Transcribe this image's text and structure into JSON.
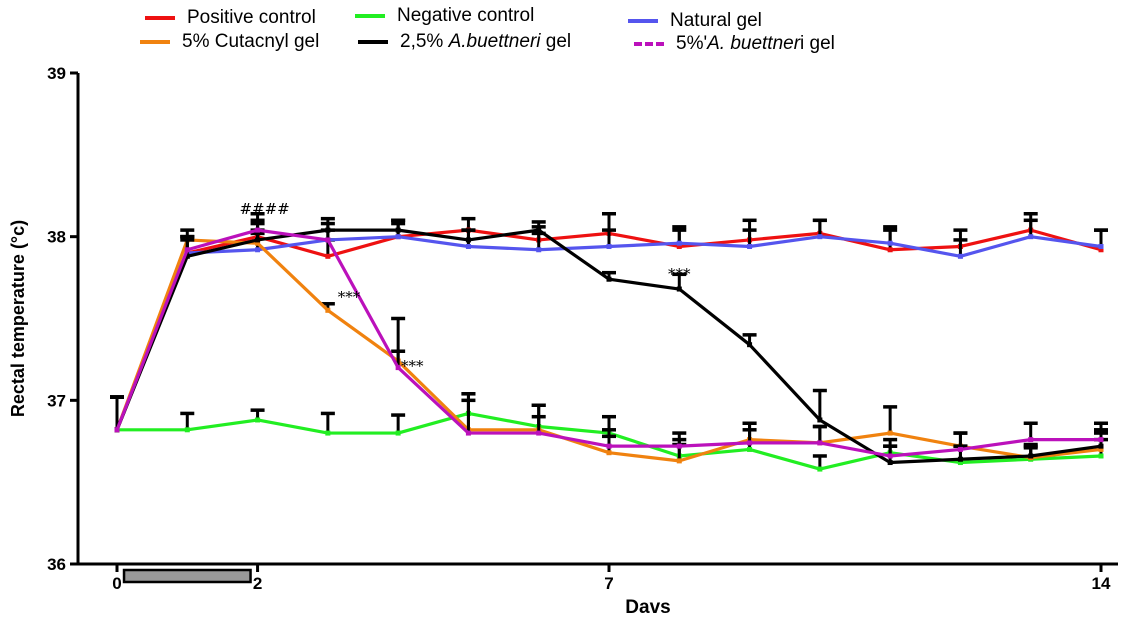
{
  "legend": {
    "items": [
      {
        "pre": "Positive control",
        "ital": "",
        "post": "",
        "color": "#ee1111",
        "dashed": false
      },
      {
        "pre": "Negative control",
        "ital": "",
        "post": "",
        "color": "#22ee22",
        "dashed": false
      },
      {
        "pre": "Natural gel",
        "ital": "",
        "post": "",
        "color": "#5555ee",
        "dashed": false
      },
      {
        "pre": "5% Cutacnyl gel",
        "ital": "",
        "post": "",
        "color": "#f0820f",
        "dashed": false
      },
      {
        "pre": "2,5% ",
        "ital": "A.buettneri",
        "post": " gel",
        "color": "#000000",
        "dashed": false
      },
      {
        "pre": "5%'",
        "ital": "A. buettner",
        "post": "i gel",
        "color": "#bb11bb",
        "dashed": true
      }
    ]
  },
  "chart_data": {
    "type": "line",
    "xlabel": "Davs",
    "ylabel": "Rectal temperature (°c)",
    "xlim": [
      0,
      14
    ],
    "ylim": [
      36,
      39
    ],
    "xticks": [
      0,
      2,
      7,
      14
    ],
    "xtick_labels": [
      "0",
      "2",
      "7",
      "14"
    ],
    "yticks": [
      36,
      37,
      38,
      39
    ],
    "ytick_labels": [
      "36",
      "37",
      "38",
      "39"
    ],
    "treatment_bar": [
      0.1,
      1.9
    ],
    "x": [
      0,
      1,
      2,
      3,
      4,
      5,
      6,
      7,
      8,
      9,
      10,
      11,
      12,
      13,
      14
    ],
    "series": [
      {
        "name": "Positive control",
        "color": "#ee1111",
        "values": [
          36.82,
          37.9,
          38.0,
          37.88,
          38.0,
          38.04,
          37.98,
          38.02,
          37.94,
          37.98,
          38.02,
          37.92,
          37.94,
          38.04,
          37.92
        ],
        "err": [
          0.2,
          0.1,
          0.1,
          0.1,
          0.08,
          0.07,
          0.08,
          0.12,
          0.1,
          0.12,
          0.08,
          0.12,
          0.1,
          0.1,
          0.12
        ]
      },
      {
        "name": "Negative control",
        "color": "#22ee22",
        "values": [
          36.82,
          36.82,
          36.88,
          36.8,
          36.8,
          36.92,
          36.84,
          36.8,
          36.66,
          36.7,
          36.58,
          36.68,
          36.62,
          36.64,
          36.66
        ],
        "err": [
          0.2,
          0.1,
          0.06,
          0.12,
          0.11,
          0.12,
          0.13,
          0.1,
          0.1,
          0.12,
          0.08,
          0.08,
          0.1,
          0.08,
          0.1
        ]
      },
      {
        "name": "Natural gel",
        "color": "#5555ee",
        "values": [
          36.82,
          37.9,
          37.92,
          37.98,
          38.0,
          37.94,
          37.92,
          37.94,
          37.96,
          37.94,
          38.0,
          37.96,
          37.88,
          38.0,
          37.94
        ],
        "err": [
          0.2,
          0.1,
          0.1,
          0.1,
          0.1,
          0.1,
          0.1,
          0.1,
          0.1,
          0.1,
          0.1,
          0.1,
          0.1,
          0.1,
          0.1
        ]
      },
      {
        "name": "5% Cutacnyl gel",
        "color": "#f0820f",
        "values": [
          36.82,
          37.98,
          37.96,
          37.55,
          37.24,
          36.82,
          36.82,
          36.68,
          36.63,
          36.76,
          36.74,
          36.8,
          36.72,
          36.65,
          36.7
        ],
        "err": [
          0.2,
          0.06,
          0.08,
          0.04,
          0.06,
          0.22,
          0.15,
          0.1,
          0.1,
          0.1,
          0.1,
          0.16,
          0.08,
          0.08,
          0.1
        ]
      },
      {
        "name": "2,5% A.buettneri gel",
        "color": "#000000",
        "values": [
          36.82,
          37.88,
          37.98,
          38.04,
          38.04,
          37.98,
          38.04,
          37.74,
          37.68,
          37.34,
          36.88,
          36.62,
          36.64,
          36.66,
          36.72
        ],
        "err": [
          0.2,
          0.1,
          0.1,
          0.07,
          0.06,
          0.06,
          0.05,
          0.04,
          0.09,
          0.06,
          0.18,
          0.1,
          0.08,
          0.05,
          0.1
        ]
      },
      {
        "name": "5%'A. buettneri gel",
        "color": "#bb11bb",
        "values": [
          36.82,
          37.92,
          38.04,
          37.98,
          37.2,
          36.8,
          36.8,
          36.72,
          36.72,
          36.74,
          36.74,
          36.66,
          36.7,
          36.76,
          36.76
        ],
        "err": [
          0.2,
          0.08,
          0.1,
          0.06,
          0.3,
          0.2,
          0.1,
          0.1,
          0.08,
          0.12,
          0.1,
          0.06,
          0.1,
          0.1,
          0.1
        ]
      }
    ],
    "annotations": [
      {
        "text": "####",
        "x": 2.1,
        "y": 38.14
      },
      {
        "text": "***",
        "x": 3.3,
        "y": 37.6
      },
      {
        "text": "***",
        "x": 4.2,
        "y": 37.18
      },
      {
        "text": "***",
        "x": 8.0,
        "y": 37.74
      }
    ]
  }
}
